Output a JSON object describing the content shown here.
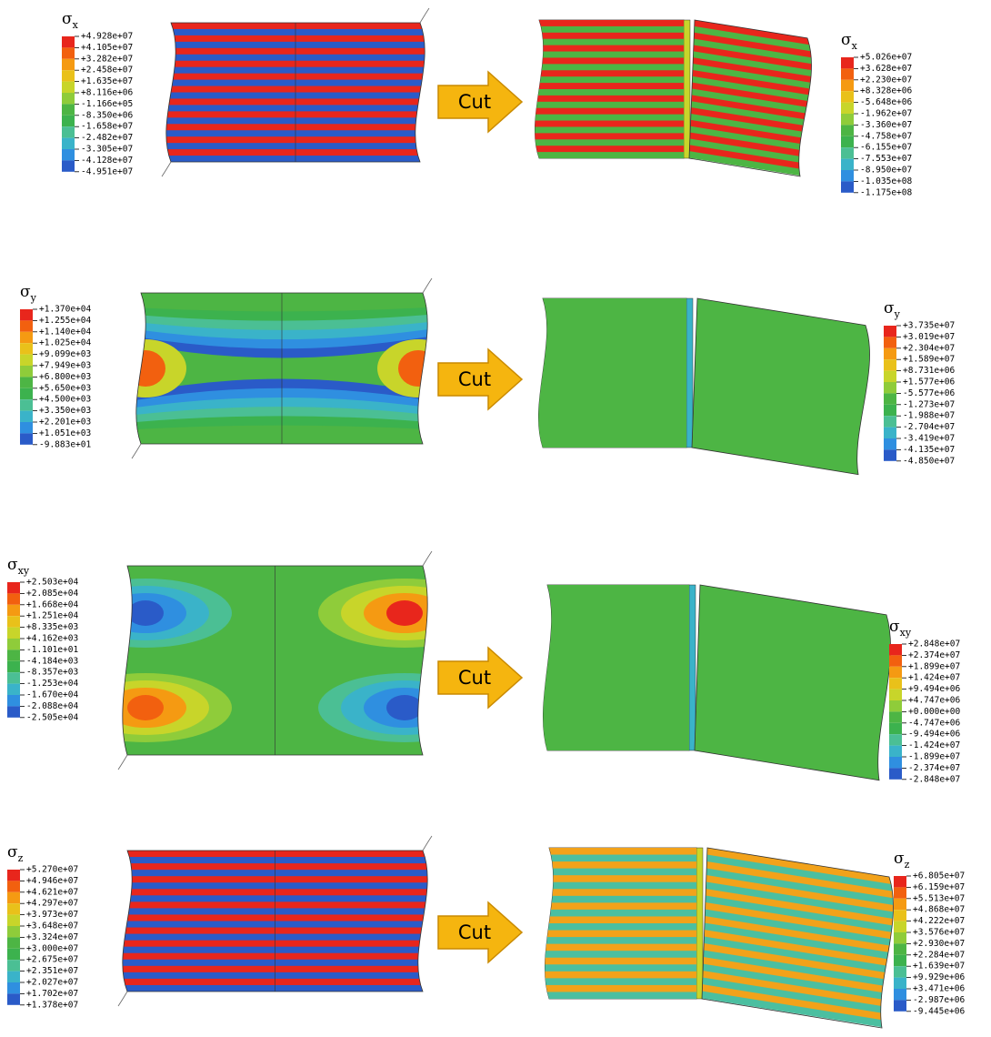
{
  "rows": [
    {
      "left": {
        "title": {
          "symbol": "σ",
          "sub": "x"
        },
        "labels": [
          "+4.928e+07",
          "+4.105e+07",
          "+3.282e+07",
          "+2.458e+07",
          "+1.635e+07",
          "+8.116e+06",
          "-1.166e+05",
          "-8.350e+06",
          "-1.658e+07",
          "-2.482e+07",
          "-3.305e+07",
          "-4.128e+07",
          "-4.951e+07"
        ]
      },
      "arrow": "Cut",
      "right": {
        "title": {
          "symbol": "σ",
          "sub": "x"
        },
        "labels": [
          "+5.026e+07",
          "+3.628e+07",
          "+2.230e+07",
          "+8.328e+06",
          "-5.648e+06",
          "-1.962e+07",
          "-3.360e+07",
          "-4.758e+07",
          "-6.155e+07",
          "-7.553e+07",
          "-8.950e+07",
          "-1.035e+08",
          "-1.175e+08"
        ]
      }
    },
    {
      "left": {
        "title": {
          "symbol": "σ",
          "sub": "y"
        },
        "labels": [
          "+1.370e+04",
          "+1.255e+04",
          "+1.140e+04",
          "+1.025e+04",
          "+9.099e+03",
          "+7.949e+03",
          "+6.800e+03",
          "+5.650e+03",
          "+4.500e+03",
          "+3.350e+03",
          "+2.201e+03",
          "+1.051e+03",
          "-9.883e+01"
        ]
      },
      "arrow": "Cut",
      "right": {
        "title": {
          "symbol": "σ",
          "sub": "y"
        },
        "labels": [
          "+3.735e+07",
          "+3.019e+07",
          "+2.304e+07",
          "+1.589e+07",
          "+8.731e+06",
          "+1.577e+06",
          "-5.577e+06",
          "-1.273e+07",
          "-1.988e+07",
          "-2.704e+07",
          "-3.419e+07",
          "-4.135e+07",
          "-4.850e+07"
        ]
      }
    },
    {
      "left": {
        "title": {
          "symbol": "σ",
          "sub": "xy"
        },
        "labels": [
          "+2.503e+04",
          "+2.085e+04",
          "+1.668e+04",
          "+1.251e+04",
          "+8.335e+03",
          "+4.162e+03",
          "-1.101e+01",
          "-4.184e+03",
          "-8.357e+03",
          "-1.253e+04",
          "-1.670e+04",
          "-2.088e+04",
          "-2.505e+04"
        ]
      },
      "arrow": "Cut",
      "right": {
        "title": {
          "symbol": "σ",
          "sub": "xy"
        },
        "labels": [
          "+2.848e+07",
          "+2.374e+07",
          "+1.899e+07",
          "+1.424e+07",
          "+9.494e+06",
          "+4.747e+06",
          "+0.000e+00",
          "-4.747e+06",
          "-9.494e+06",
          "-1.424e+07",
          "-1.899e+07",
          "-2.374e+07",
          "-2.848e+07"
        ]
      }
    },
    {
      "left": {
        "title": {
          "symbol": "σ",
          "sub": "z"
        },
        "labels": [
          "+5.270e+07",
          "+4.946e+07",
          "+4.621e+07",
          "+4.297e+07",
          "+3.973e+07",
          "+3.648e+07",
          "+3.324e+07",
          "+3.000e+07",
          "+2.675e+07",
          "+2.351e+07",
          "+2.027e+07",
          "+1.702e+07",
          "+1.378e+07"
        ]
      },
      "arrow": "Cut",
      "right": {
        "title": {
          "symbol": "σ",
          "sub": "z"
        },
        "labels": [
          "+6.805e+07",
          "+6.159e+07",
          "+5.513e+07",
          "+4.868e+07",
          "+4.222e+07",
          "+3.576e+07",
          "+2.930e+07",
          "+2.284e+07",
          "+1.639e+07",
          "+9.929e+06",
          "+3.471e+06",
          "-2.987e+06",
          "-9.445e+06"
        ]
      }
    }
  ]
}
